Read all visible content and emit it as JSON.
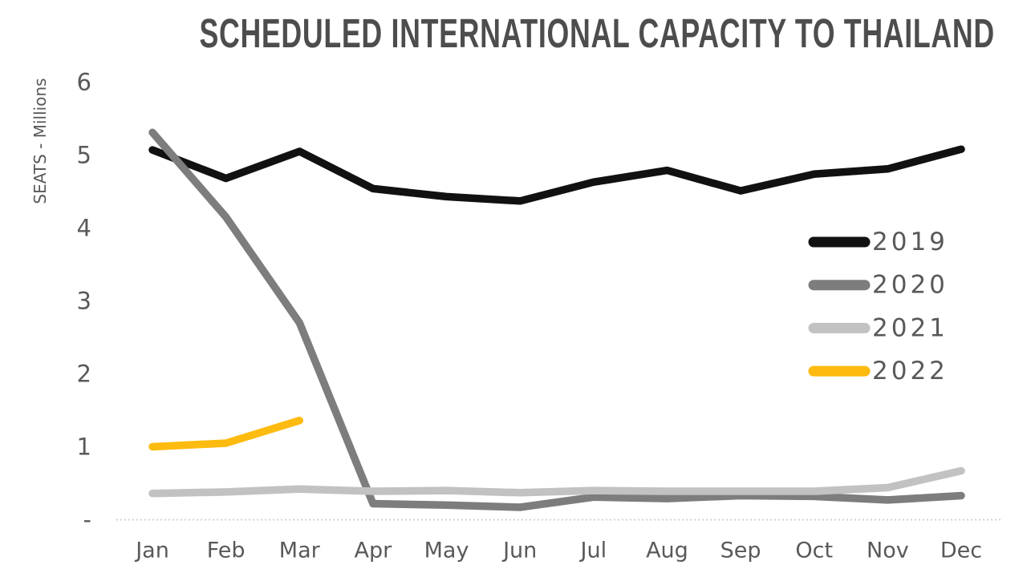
{
  "title": "SCHEDULED INTERNATIONAL CAPACITY TO THAILAND",
  "colors": {
    "title_text": "#4d4d4d",
    "axis_text": "#595959",
    "axis_line": "#d2d2d2"
  },
  "chart_data": {
    "type": "line",
    "title": "SCHEDULED INTERNATIONAL CAPACITY TO THAILAND",
    "xlabel": "",
    "ylabel": "SEATS - Millions",
    "categories": [
      "Jan",
      "Feb",
      "Mar",
      "Apr",
      "May",
      "Jun",
      "Jul",
      "Aug",
      "Sep",
      "Oct",
      "Nov",
      "Dec"
    ],
    "y_tick_labels": [
      "-",
      "1",
      "2",
      "3",
      "4",
      "5",
      "6"
    ],
    "ylim": [
      0,
      6
    ],
    "grid": false,
    "legend_position": "middle-right",
    "legend_entries": [
      "2019",
      "2020",
      "2021",
      "2022"
    ],
    "series": [
      {
        "name": "2019",
        "color": "#111111",
        "values": [
          5.07,
          4.68,
          5.05,
          4.54,
          4.43,
          4.37,
          4.63,
          4.79,
          4.51,
          4.74,
          4.81,
          5.08
        ]
      },
      {
        "name": "2020",
        "color": "#7d7d7d",
        "values": [
          5.31,
          4.15,
          2.7,
          0.22,
          0.2,
          0.17,
          0.31,
          0.29,
          0.33,
          0.32,
          0.27,
          0.33
        ]
      },
      {
        "name": "2021",
        "color": "#c2c2c2",
        "values": [
          0.36,
          0.38,
          0.42,
          0.39,
          0.4,
          0.37,
          0.4,
          0.39,
          0.39,
          0.39,
          0.44,
          0.67
        ]
      },
      {
        "name": "2022",
        "color": "#fdbb0f",
        "values": [
          1.0,
          1.05,
          1.36,
          null,
          null,
          null,
          null,
          null,
          null,
          null,
          null,
          null
        ]
      }
    ]
  }
}
